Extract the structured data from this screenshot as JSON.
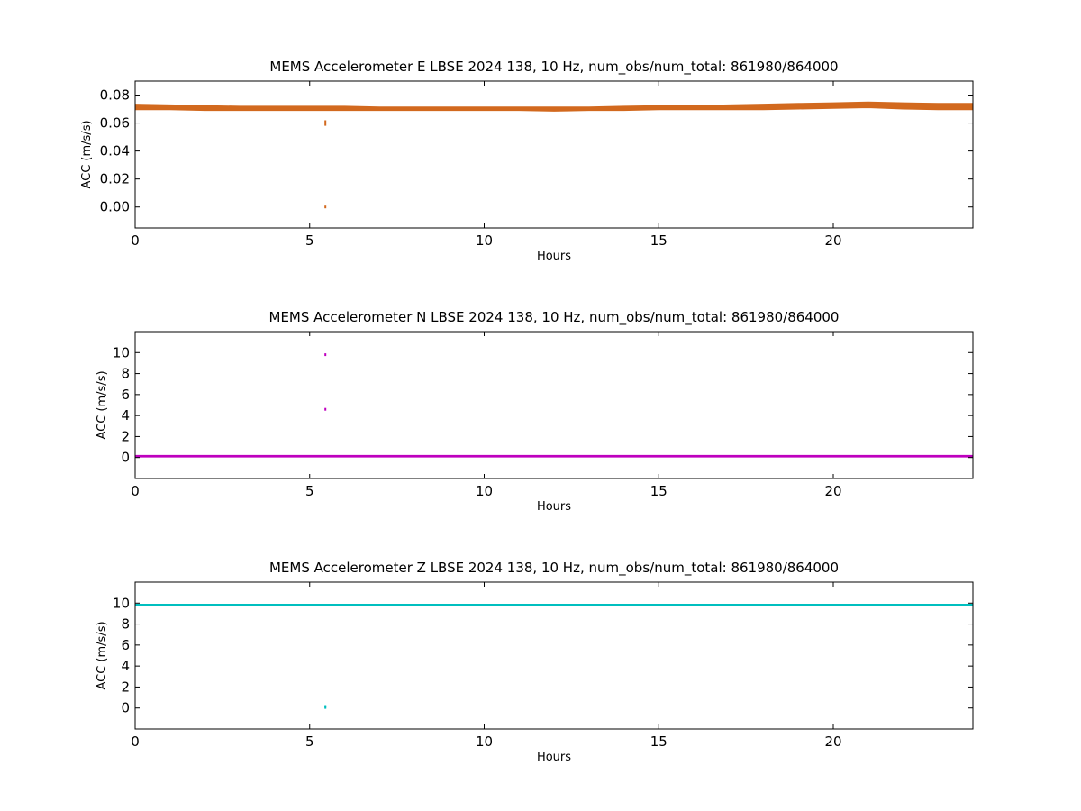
{
  "chart_data": [
    {
      "type": "line",
      "title": "MEMS Accelerometer E LBSE 2024 138, 10 Hz, num_obs/num_total: 861980/864000",
      "xlabel": "Hours",
      "ylabel": "ACC (m/s/s)",
      "xlim": [
        0,
        24
      ],
      "ylim": [
        -0.015,
        0.09
      ],
      "xticks": [
        0,
        5,
        10,
        15,
        20
      ],
      "yticks": [
        0.0,
        0.02,
        0.04,
        0.06,
        0.08
      ],
      "ytick_labels": [
        "0.00",
        "0.02",
        "0.04",
        "0.06",
        "0.08"
      ],
      "grid": false,
      "color": "#d2691e",
      "series": [
        {
          "x": [
            0,
            1,
            2,
            3,
            4,
            5,
            6,
            7,
            8,
            9,
            10,
            11,
            12,
            13,
            14,
            15,
            16,
            17,
            18,
            19,
            20,
            21,
            22,
            23,
            24
          ],
          "y_min": [
            0.0695,
            0.0695,
            0.069,
            0.069,
            0.069,
            0.069,
            0.069,
            0.069,
            0.069,
            0.069,
            0.069,
            0.069,
            0.0685,
            0.069,
            0.069,
            0.0695,
            0.0695,
            0.0695,
            0.0695,
            0.07,
            0.0705,
            0.071,
            0.07,
            0.0695,
            0.0695
          ],
          "y_max": [
            0.0735,
            0.073,
            0.0725,
            0.072,
            0.072,
            0.072,
            0.072,
            0.0715,
            0.0715,
            0.0715,
            0.0715,
            0.0715,
            0.0715,
            0.0715,
            0.072,
            0.0725,
            0.0725,
            0.073,
            0.0735,
            0.074,
            0.0745,
            0.075,
            0.0745,
            0.074,
            0.074
          ]
        }
      ],
      "outliers": [
        {
          "x": 5.45,
          "y": 0.0
        },
        {
          "x": 5.45,
          "y": 0.059
        },
        {
          "x": 5.45,
          "y": 0.061
        }
      ]
    },
    {
      "type": "line",
      "title": "MEMS Accelerometer N LBSE 2024 138, 10 Hz, num_obs/num_total: 861980/864000",
      "xlabel": "Hours",
      "ylabel": "ACC (m/s/s)",
      "xlim": [
        0,
        24
      ],
      "ylim": [
        -2,
        12
      ],
      "xticks": [
        0,
        5,
        10,
        15,
        20
      ],
      "yticks": [
        0,
        2,
        4,
        6,
        8,
        10
      ],
      "ytick_labels": [
        "0",
        "2",
        "4",
        "6",
        "8",
        "10"
      ],
      "grid": false,
      "color": "#bf00bf",
      "series": [
        {
          "x": [
            0,
            24
          ],
          "y_min": [
            0.05,
            0.05
          ],
          "y_max": [
            0.2,
            0.2
          ]
        }
      ],
      "outliers": [
        {
          "x": 5.45,
          "y": 9.8
        },
        {
          "x": 5.45,
          "y": 4.6
        }
      ]
    },
    {
      "type": "line",
      "title": "MEMS Accelerometer Z LBSE 2024 138, 10 Hz, num_obs/num_total: 861980/864000",
      "xlabel": "Hours",
      "ylabel": "ACC (m/s/s)",
      "xlim": [
        0,
        24
      ],
      "ylim": [
        -2,
        12
      ],
      "xticks": [
        0,
        5,
        10,
        15,
        20
      ],
      "yticks": [
        0,
        2,
        4,
        6,
        8,
        10
      ],
      "ytick_labels": [
        "0",
        "2",
        "4",
        "6",
        "8",
        "10"
      ],
      "grid": false,
      "color": "#00bfbf",
      "series": [
        {
          "x": [
            0,
            24
          ],
          "y_min": [
            9.75,
            9.75
          ],
          "y_max": [
            9.9,
            9.9
          ]
        }
      ],
      "outliers": [
        {
          "x": 5.45,
          "y": 0.05
        },
        {
          "x": 5.45,
          "y": 0.15
        }
      ]
    }
  ]
}
